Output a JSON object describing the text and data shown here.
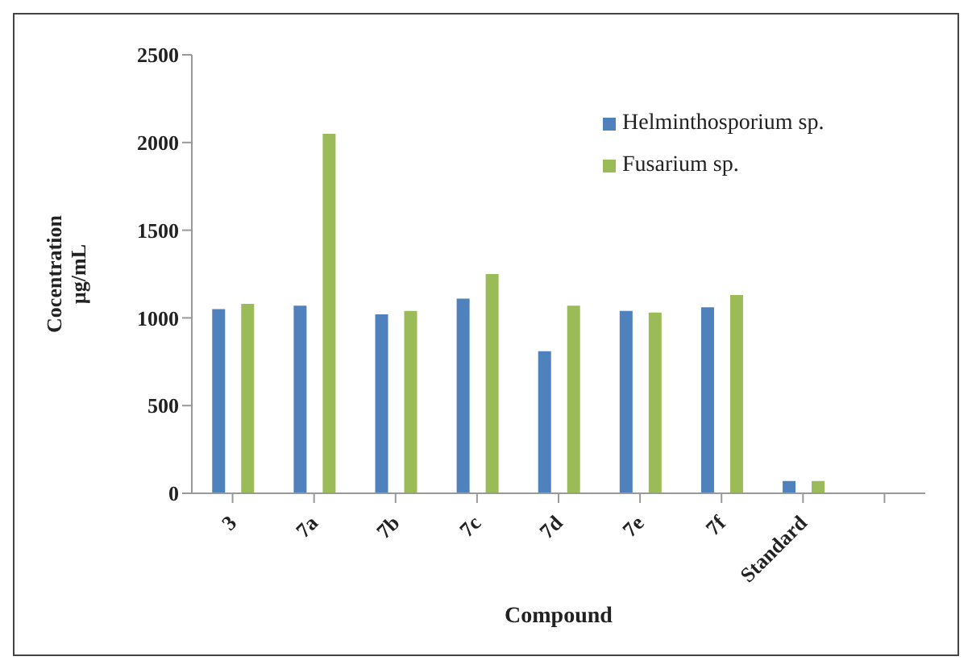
{
  "chart_data": {
    "type": "bar",
    "xlabel": "Compound",
    "ylabel": "Cocentration\nµg/mL",
    "categories": [
      "3",
      "7a",
      "7b",
      "7c",
      "7d",
      "7e",
      "7f",
      "Standard",
      null
    ],
    "series": [
      {
        "name": "Helminthosporium sp.",
        "color": "#4f81bd",
        "values": [
          1050,
          1070,
          1020,
          1110,
          810,
          1040,
          1060,
          70,
          null
        ]
      },
      {
        "name": "Fusarium sp.",
        "color": "#9bbb59",
        "values": [
          1080,
          2050,
          1040,
          1250,
          1070,
          1030,
          1130,
          70,
          null
        ]
      }
    ],
    "ylim": [
      0,
      2500
    ],
    "yticks": [
      0,
      500,
      1000,
      1500,
      2000,
      2500
    ],
    "grid": false,
    "legend": "top right"
  }
}
